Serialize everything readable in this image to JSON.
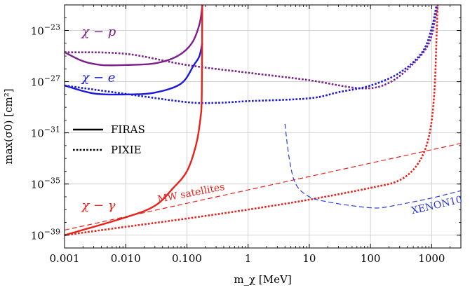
{
  "chart_data": {
    "type": "line",
    "xlabel": "m_χ [MeV]",
    "ylabel": "max(σ0) [cm²]",
    "xscale": "log",
    "yscale": "log",
    "xlim": [
      0.001,
      3000
    ],
    "ylim": [
      1e-40,
      1e-21
    ],
    "grid": true,
    "x_ticks": [
      {
        "value": 0.001,
        "label": "0.001"
      },
      {
        "value": 0.01,
        "label": "0.010"
      },
      {
        "value": 0.1,
        "label": "0.100"
      },
      {
        "value": 1,
        "label": "1"
      },
      {
        "value": 10,
        "label": "10"
      },
      {
        "value": 100,
        "label": "100"
      },
      {
        "value": 1000,
        "label": "1000"
      }
    ],
    "y_ticks": [
      {
        "value": 1e-39,
        "base": "10",
        "exp": "−39"
      },
      {
        "value": 1e-35,
        "base": "10",
        "exp": "−35"
      },
      {
        "value": 1e-31,
        "base": "10",
        "exp": "−31"
      },
      {
        "value": 1e-27,
        "base": "10",
        "exp": "−27"
      },
      {
        "value": 1e-23,
        "base": "10",
        "exp": "−23"
      }
    ],
    "legend": {
      "placement": "left",
      "entries": [
        {
          "label": "FIRAS",
          "style": "solid"
        },
        {
          "label": "PIXIE",
          "style": "dotted"
        }
      ]
    },
    "annotations": [
      {
        "text": "χ − p",
        "color": "#7b1f8a",
        "x": 0.0019,
        "y": 4e-24
      },
      {
        "text": "χ − e",
        "color": "#1a1ad8",
        "x": 0.0019,
        "y": 1e-27
      },
      {
        "text": "χ − γ",
        "color": "#e8221b",
        "x": 0.0019,
        "y": 1e-37
      },
      {
        "text": "MW satellites",
        "color": "#e8221b",
        "x": 0.034,
        "y": 3.5e-37,
        "rotate": -11
      },
      {
        "text": "XENON10",
        "color": "#2b3bd6",
        "x": 480,
        "y": 4.5e-38,
        "rotate": -13
      }
    ],
    "colors": {
      "p": "#7b1f8a",
      "e": "#1a1ad8",
      "gamma": "#e8221b",
      "xenon": "#2b3bd6"
    },
    "series": [
      {
        "id": "p-firas",
        "color": "#7b1f8a",
        "style": "solid",
        "points": [
          [
            0.001,
            2e-25
          ],
          [
            0.002,
            4e-26
          ],
          [
            0.004,
            2e-26
          ],
          [
            0.01,
            2e-26
          ],
          [
            0.03,
            2.7e-26
          ],
          [
            0.07,
            1e-25
          ],
          [
            0.12,
            1e-24
          ],
          [
            0.16,
            3e-23
          ],
          [
            0.18,
            1e-21
          ]
        ]
      },
      {
        "id": "p-pixie",
        "color": "#7b1f8a",
        "style": "dotted",
        "points": [
          [
            0.001,
            2e-25
          ],
          [
            0.01,
            1.5e-25
          ],
          [
            0.1,
            2e-26
          ],
          [
            1,
            5e-27
          ],
          [
            10,
            1.3e-27
          ],
          [
            70,
            3e-28
          ],
          [
            200,
            8e-28
          ],
          [
            500,
            2.5e-26
          ],
          [
            900,
            1e-24
          ],
          [
            1150,
            1e-22
          ],
          [
            1250,
            1e-21
          ]
        ]
      },
      {
        "id": "e-firas",
        "color": "#1a1ad8",
        "style": "solid",
        "points": [
          [
            0.001,
            5e-28
          ],
          [
            0.003,
            1.2e-28
          ],
          [
            0.01,
            1e-28
          ],
          [
            0.03,
            1.4e-28
          ],
          [
            0.08,
            7e-28
          ],
          [
            0.13,
            2e-26
          ],
          [
            0.16,
            1e-25
          ],
          [
            0.178,
            1e-24
          ]
        ]
      },
      {
        "id": "e-pixie",
        "color": "#1a1ad8",
        "style": "dotted",
        "points": [
          [
            0.001,
            5e-28
          ],
          [
            0.01,
            1.1e-28
          ],
          [
            0.1,
            2.5e-29
          ],
          [
            0.3,
            2.2e-29
          ],
          [
            1,
            3e-29
          ],
          [
            10,
            5e-29
          ],
          [
            30,
            1.5e-28
          ],
          [
            100,
            5e-28
          ],
          [
            300,
            5e-27
          ],
          [
            700,
            2e-25
          ],
          [
            1000,
            1.5e-23
          ],
          [
            1200,
            1e-21
          ]
        ]
      },
      {
        "id": "gamma-firas",
        "color": "#e8221b",
        "style": "solid",
        "points": [
          [
            0.001,
            1e-39
          ],
          [
            0.01,
            2.5e-38
          ],
          [
            0.03,
            2e-37
          ],
          [
            0.06,
            5e-36
          ],
          [
            0.1,
            1e-34
          ],
          [
            0.14,
            1e-32
          ],
          [
            0.165,
            1e-30
          ],
          [
            0.175,
            1e-28
          ],
          [
            0.178,
            1e-21
          ]
        ]
      },
      {
        "id": "gamma-pixie",
        "color": "#e8221b",
        "style": "dotted",
        "points": [
          [
            0.001,
            1e-39
          ],
          [
            0.01,
            4.5e-39
          ],
          [
            0.1,
            2e-38
          ],
          [
            1,
            1e-37
          ],
          [
            10,
            6e-37
          ],
          [
            100,
            5e-36
          ],
          [
            300,
            2e-35
          ],
          [
            600,
            4e-34
          ],
          [
            900,
            5e-32
          ],
          [
            1100,
            1e-28
          ],
          [
            1200,
            3e-24
          ],
          [
            1250,
            1e-21
          ]
        ]
      },
      {
        "id": "mw-satellites",
        "color": "#e8221b",
        "style": "dashed",
        "points": [
          [
            0.001,
            2.5e-39
          ],
          [
            3000,
            1.5e-32
          ]
        ]
      },
      {
        "id": "xenon10",
        "color": "#2b3bd6",
        "style": "dashed",
        "points": [
          [
            4,
            5e-31
          ],
          [
            4.7,
            1e-33
          ],
          [
            6,
            1e-35
          ],
          [
            10,
            1e-36
          ],
          [
            20,
            4e-37
          ],
          [
            50,
            2e-37
          ],
          [
            100,
            1.4e-37
          ],
          [
            150,
            1.4e-37
          ],
          [
            300,
            2.5e-37
          ],
          [
            1000,
            8e-37
          ],
          [
            3000,
            3e-36
          ]
        ]
      }
    ]
  }
}
